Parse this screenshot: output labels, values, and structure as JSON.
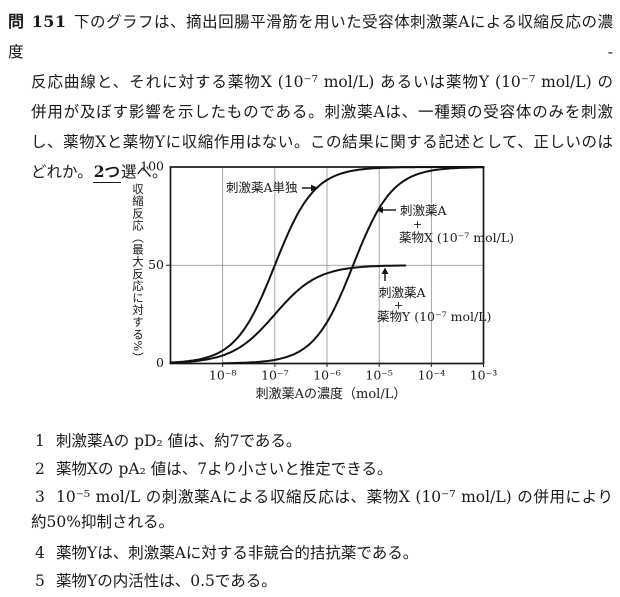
{
  "question": {
    "number_label": "問 151",
    "lines": [
      "下のグラフは、摘出回腸平滑筋を用いた受容体刺激薬Aによる収縮反応の濃度-",
      "反応曲線と、それに対する薬物X (10⁻⁷ mol/L) あるいは薬物Y (10⁻⁷ mol/L) の",
      "併用が及ぼす影響を示したものである。刺激薬Aは、一種類の受容体のみを刺激",
      "し、薬物Xと薬物Yに収縮作用はない。この結果に関する記述として、正しいのは"
    ],
    "last_line": {
      "pre": "どれか。",
      "emphasized": "2つ",
      "post": "選べ。"
    }
  },
  "chart_data": {
    "type": "line",
    "xlabel": "刺激薬Aの濃度（mol/L）",
    "ylabel": "収縮反応（最大反応に対する%）",
    "x_scale": "log",
    "x_range_log": [
      -9,
      -3
    ],
    "ylim": [
      0,
      100
    ],
    "grid": true,
    "y_ticks": [
      100,
      50,
      0
    ],
    "x_ticks": [
      "10⁻⁸",
      "10⁻⁷",
      "10⁻⁶",
      "10⁻⁵",
      "10⁻⁴",
      "10⁻³"
    ],
    "x_tick_logs": [
      -8,
      -7,
      -6,
      -5,
      -4,
      -3
    ],
    "x_gridline_logs": [
      -8,
      -7,
      -6,
      -5,
      -4
    ],
    "y_gridline_values": [
      50
    ],
    "series": [
      {
        "id": "a-alone",
        "name": "刺激薬A単独",
        "model": "sigmoid_log",
        "emax": 100,
        "log_ec50": -7,
        "hill": 1.15,
        "log_x_start": -9,
        "log_x_end": -3,
        "readings": {
          "log_x": [
            -8,
            -7,
            -6,
            -5
          ],
          "values": [
            7,
            50,
            91,
            99
          ]
        }
      },
      {
        "id": "a-plus-x",
        "name": "刺激薬A + 薬物X (10⁻⁷ mol/L)",
        "model": "sigmoid_log",
        "emax": 100,
        "log_ec50": -5.5,
        "hill": 1.15,
        "log_x_start": -8,
        "log_x_end": -3,
        "readings": {
          "log_x": [
            -6,
            -5.5,
            -5,
            -4
          ],
          "values": [
            12,
            50,
            78,
            98
          ]
        }
      },
      {
        "id": "a-plus-y",
        "name": "刺激薬A + 薬物Y (10⁻⁷ mol/L)",
        "model": "sigmoid_log",
        "emax": 50,
        "log_ec50": -7,
        "hill": 1.05,
        "log_x_start": -9,
        "log_x_end": -4.5,
        "readings": {
          "log_x": [
            -8,
            -7,
            -6,
            -5
          ],
          "values": [
            4,
            25,
            46,
            49
          ]
        }
      }
    ],
    "annotations": [
      {
        "target": "a-alone",
        "lines": [
          "刺激薬A単独"
        ]
      },
      {
        "target": "a-plus-x",
        "lines": [
          "刺激薬A",
          "+",
          "薬物X (10⁻⁷ mol/L)"
        ]
      },
      {
        "target": "a-plus-y",
        "lines": [
          "刺激薬A",
          "+",
          "薬物Y (10⁻⁷ mol/L)"
        ]
      }
    ]
  },
  "choices": [
    {
      "number": "1",
      "lines": [
        "刺激薬Aの pD₂ 値は、約7である。"
      ]
    },
    {
      "number": "2",
      "lines": [
        "薬物Xの pA₂ 値は、7より小さいと推定できる。"
      ]
    },
    {
      "number": "3",
      "lines": [
        "10⁻⁵ mol/L の刺激薬Aによる収縮反応は、薬物X (10⁻⁷ mol/L) の併用により",
        "約50%抑制される。"
      ]
    },
    {
      "number": "4",
      "lines": [
        "薬物Yは、刺激薬Aに対する非競合的拮抗薬である。"
      ]
    },
    {
      "number": "5",
      "lines": [
        "薬物Yの内活性は、0.5である。"
      ]
    }
  ]
}
